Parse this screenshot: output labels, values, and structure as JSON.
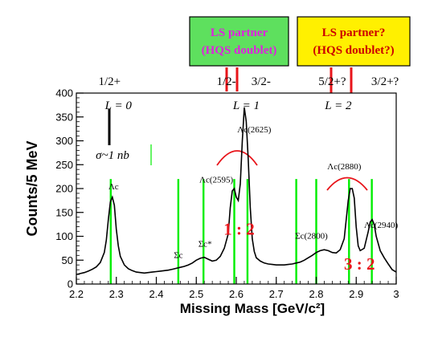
{
  "chart_data": {
    "type": "line",
    "xlabel": "Missing Mass [GeV/c²]",
    "ylabel": "Counts/5 MeV",
    "xlim": [
      2.2,
      3.0
    ],
    "ylim": [
      0,
      400
    ],
    "x_ticks": [
      "2.2",
      "2.3",
      "2.4",
      "2.5",
      "2.6",
      "2.7",
      "2.8",
      "2.9",
      "3"
    ],
    "y_ticks": [
      "0",
      "50",
      "100",
      "150",
      "200",
      "250",
      "300",
      "350",
      "400"
    ],
    "series": [
      {
        "x": [
          2.2,
          2.21,
          2.22,
          2.23,
          2.24,
          2.25,
          2.26,
          2.27,
          2.275,
          2.28,
          2.285,
          2.29,
          2.295,
          2.3,
          2.305,
          2.31,
          2.32,
          2.33,
          2.34,
          2.35,
          2.36,
          2.37,
          2.38,
          2.39,
          2.4,
          2.41,
          2.42,
          2.43,
          2.44,
          2.45,
          2.46,
          2.47,
          2.48,
          2.49,
          2.5,
          2.51,
          2.52,
          2.53,
          2.54,
          2.55,
          2.56,
          2.57,
          2.58,
          2.585,
          2.59,
          2.595,
          2.6,
          2.605,
          2.61,
          2.615,
          2.62,
          2.625,
          2.63,
          2.635,
          2.64,
          2.645,
          2.65,
          2.66,
          2.67,
          2.68,
          2.69,
          2.7,
          2.71,
          2.72,
          2.73,
          2.74,
          2.75,
          2.76,
          2.77,
          2.78,
          2.79,
          2.8,
          2.81,
          2.82,
          2.83,
          2.84,
          2.85,
          2.86,
          2.87,
          2.875,
          2.88,
          2.885,
          2.89,
          2.895,
          2.9,
          2.905,
          2.91,
          2.92,
          2.93,
          2.935,
          2.94,
          2.945,
          2.95,
          2.96,
          2.97,
          2.98,
          2.99,
          3.0
        ],
        "y": [
          20,
          22,
          24,
          27,
          31,
          36,
          45,
          66,
          92,
          135,
          172,
          182,
          165,
          115,
          80,
          58,
          40,
          32,
          28,
          25,
          24,
          23,
          24,
          25,
          26,
          27,
          28,
          29,
          31,
          33,
          35,
          37,
          40,
          44,
          50,
          54,
          56,
          52,
          48,
          50,
          58,
          75,
          105,
          160,
          195,
          200,
          182,
          175,
          210,
          300,
          370,
          340,
          260,
          160,
          95,
          68,
          55,
          48,
          44,
          42,
          41,
          40,
          40,
          40,
          41,
          42,
          44,
          46,
          50,
          55,
          60,
          66,
          70,
          72,
          70,
          66,
          65,
          72,
          95,
          135,
          175,
          200,
          200,
          180,
          120,
          80,
          70,
          75,
          110,
          130,
          135,
          125,
          100,
          70,
          55,
          42,
          30,
          25
        ]
      }
    ],
    "spin_labels": [
      {
        "text": "1/2+",
        "x": 2.283
      },
      {
        "text": "1/2-",
        "x": 2.575
      },
      {
        "text": "3/2-",
        "x": 2.662
      },
      {
        "text": "5/2+?",
        "x": 2.84
      },
      {
        "text": "3/2+?",
        "x": 2.972
      }
    ],
    "l_labels": [
      {
        "text": "L = 0",
        "x": 2.305
      },
      {
        "text": "L = 1",
        "x": 2.625
      },
      {
        "text": "L = 2",
        "x": 2.855
      }
    ],
    "particle_labels": [
      {
        "text": "Λc",
        "x": 2.293,
        "y": 198
      },
      {
        "text": "Σc",
        "x": 2.455,
        "y": 55
      },
      {
        "text": "Σc*",
        "x": 2.522,
        "y": 78
      },
      {
        "text": "Λc(2595)",
        "x": 2.55,
        "y": 213
      },
      {
        "text": "Λc(2625)",
        "x": 2.645,
        "y": 318
      },
      {
        "text": "Σc(2800)",
        "x": 2.788,
        "y": 95
      },
      {
        "text": "Λc(2880)",
        "x": 2.87,
        "y": 240
      },
      {
        "text": "Λc(2940)",
        "x": 2.962,
        "y": 118
      }
    ],
    "green_markers": [
      2.286,
      2.455,
      2.518,
      2.595,
      2.628,
      2.75,
      2.8,
      2.882,
      2.939
    ],
    "sigma_label": "σ~1 nb",
    "ratio_labels": [
      {
        "text": "1 : 2",
        "x": 2.607,
        "y": 103
      },
      {
        "text": "3 : 2",
        "x": 2.908,
        "y": 30
      }
    ],
    "boxes": [
      {
        "line1": "LS partner",
        "line2": "(HQS doublet)",
        "bg": "#5ee05e",
        "fg": "#e020e0"
      },
      {
        "line1": "LS partner?",
        "line2": "(HQS doublet?)",
        "bg": "#fff000",
        "fg": "#cc0000"
      }
    ],
    "colors": {
      "curve": "#000000",
      "marker": "#00ee00",
      "red": "#e8141a",
      "black_marker": "#000000"
    }
  }
}
